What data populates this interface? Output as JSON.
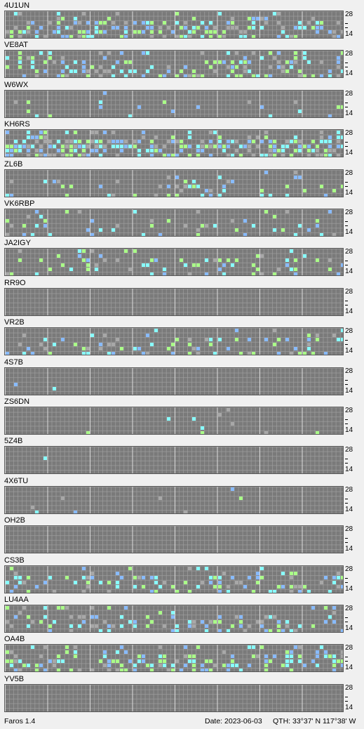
{
  "stations": [
    {
      "callsign": "4U1UN"
    },
    {
      "callsign": "VE8AT"
    },
    {
      "callsign": "W6WX"
    },
    {
      "callsign": "KH6RS"
    },
    {
      "callsign": "ZL6B"
    },
    {
      "callsign": "VK6RBP"
    },
    {
      "callsign": "JA2IGY"
    },
    {
      "callsign": "RR9O"
    },
    {
      "callsign": "VR2B"
    },
    {
      "callsign": "4S7B"
    },
    {
      "callsign": "ZS6DN"
    },
    {
      "callsign": "5Z4B"
    },
    {
      "callsign": "4X6TU"
    },
    {
      "callsign": "OH2B"
    },
    {
      "callsign": "CS3B"
    },
    {
      "callsign": "LU4AA"
    },
    {
      "callsign": "OA4B"
    },
    {
      "callsign": "YV5B"
    }
  ],
  "scale": {
    "top": "28",
    "bottom": "14"
  },
  "colors": {
    "grid_bg": "#7a7a7a",
    "grid_line": "#9a9a9a",
    "strong": "#88ffff",
    "medium": "#aaff88",
    "weak": "#88bbff",
    "faint": "#a8a8a8",
    "purple": "#8080ff"
  },
  "status": {
    "app": "Faros 1.4",
    "date": "Date: 2023-06-03",
    "qth": "QTH: 33°37' N  117°38' W"
  }
}
